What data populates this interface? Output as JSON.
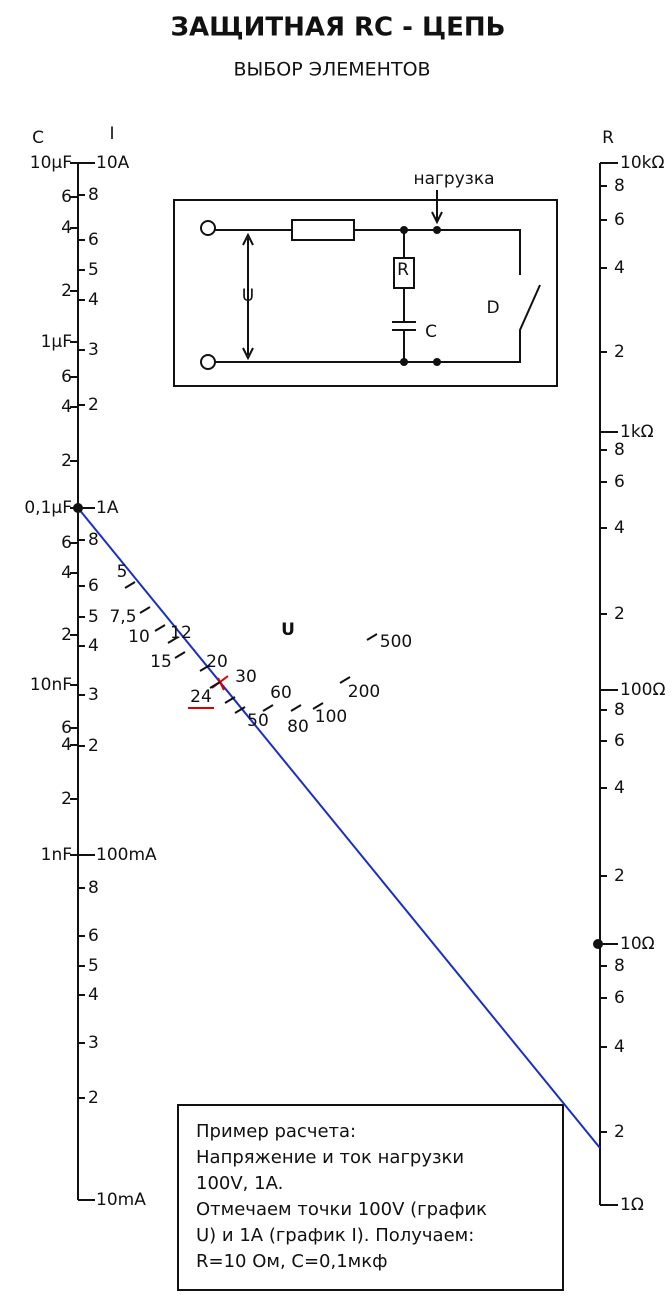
{
  "header": {
    "title": "ЗАЩИТНАЯ RC - ЦЕПЬ",
    "subtitle": "ВЫБОР ЭЛЕМЕНТОВ"
  },
  "left_axis": {
    "c_title": "C",
    "i_title": "I",
    "c_labels": [
      "10μF",
      "6",
      "4",
      "2",
      "1μF",
      "6",
      "4",
      "2",
      "0,1μF",
      "6",
      "4",
      "2",
      "10nF",
      "6",
      "4",
      "2",
      "1nF"
    ],
    "i_labels": [
      "10A",
      "8",
      "6",
      "5",
      "4",
      "3",
      "2",
      "1A",
      "8",
      "6",
      "5",
      "4",
      "3",
      "2",
      "100mA",
      "8",
      "6",
      "5",
      "4",
      "3",
      "2",
      "10mA"
    ]
  },
  "right_axis": {
    "title": "R",
    "labels": [
      "10kΩ",
      "8",
      "6",
      "4",
      "2",
      "1kΩ",
      "8",
      "6",
      "4",
      "2",
      "100Ω",
      "8",
      "6",
      "4",
      "2",
      "10Ω",
      "8",
      "6",
      "4",
      "2",
      "1Ω"
    ]
  },
  "u_scale": {
    "title": "U",
    "labels": [
      "5",
      "7,5",
      "10",
      "12",
      "15",
      "20",
      "24",
      "30",
      "50",
      "60",
      "80",
      "100",
      "200",
      "500"
    ]
  },
  "circuit": {
    "load": "нагрузка",
    "r": "R",
    "u": "U",
    "c": "C",
    "d": "D"
  },
  "example": {
    "lines": [
      "Пример расчета:",
      "Напряжение и ток нагрузки",
      "100V, 1A.",
      "Отмечаем точки 100V (график",
      "U) и 1А (график I). Получаем:",
      "R=10 Ом, С=0,1мкф"
    ]
  }
}
